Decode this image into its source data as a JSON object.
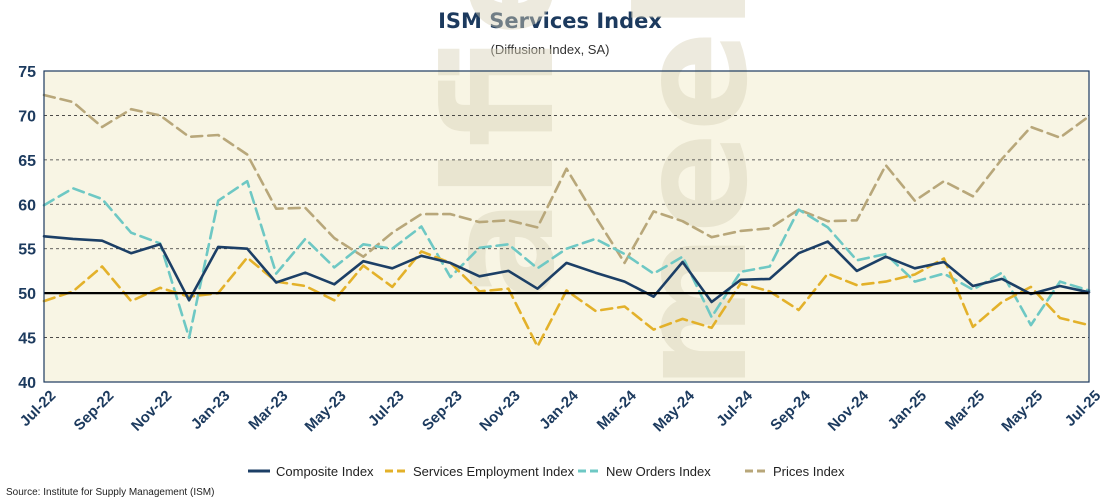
{
  "chart_data": {
    "type": "line",
    "title": "ISM Services Index",
    "subtitle": "(Diffusion Index, SA)",
    "source": "Source: Institute for Supply Management (ISM)",
    "watermark": [
      "alfie",
      "meek"
    ],
    "ylim": [
      40,
      75
    ],
    "yticks": [
      40,
      45,
      50,
      55,
      60,
      65,
      70,
      75
    ],
    "reference_line": 50,
    "grid": "horizontal dashed",
    "legend_position": "bottom",
    "background_color": "#f8f5e4",
    "categories": [
      "Jul-22",
      "Aug-22",
      "Sep-22",
      "Oct-22",
      "Nov-22",
      "Dec-22",
      "Jan-23",
      "Feb-23",
      "Mar-23",
      "Apr-23",
      "May-23",
      "Jun-23",
      "Jul-23",
      "Aug-23",
      "Sep-23",
      "Oct-23",
      "Nov-23",
      "Dec-23",
      "Jan-24",
      "Feb-24",
      "Mar-24",
      "Apr-24",
      "May-24",
      "Jun-24",
      "Jul-24",
      "Aug-24",
      "Sep-24",
      "Oct-24",
      "Nov-24",
      "Dec-24",
      "Jan-25",
      "Feb-25",
      "Mar-25",
      "Apr-25",
      "May-25",
      "Jun-25",
      "Jul-25"
    ],
    "tick_labels": [
      "Jul-22",
      "Sep-22",
      "Nov-22",
      "Jan-23",
      "Mar-23",
      "May-23",
      "Jul-23",
      "Sep-23",
      "Nov-23",
      "Jan-24",
      "Mar-24",
      "May-24",
      "Jul-24",
      "Sep-24",
      "Nov-24",
      "Jan-25",
      "Mar-25",
      "May-25",
      "Jul-25"
    ],
    "series": [
      {
        "name": "Composite Index",
        "color": "#1c3f66",
        "dash": "solid",
        "values": [
          56.4,
          56.1,
          55.9,
          54.5,
          55.5,
          49.2,
          55.2,
          55.0,
          51.2,
          52.3,
          51.0,
          53.6,
          52.8,
          54.2,
          53.4,
          51.9,
          52.5,
          50.5,
          53.4,
          52.3,
          51.3,
          49.6,
          53.5,
          49.0,
          51.5,
          51.6,
          54.5,
          55.8,
          52.5,
          54.1,
          52.8,
          53.5,
          50.8,
          51.6,
          49.9,
          50.8,
          50.1
        ]
      },
      {
        "name": "Services Employment Index",
        "color": "#e3b12a",
        "dash": "dashed",
        "values": [
          49.1,
          50.2,
          53.0,
          49.1,
          50.6,
          49.6,
          50.0,
          54.0,
          51.3,
          50.8,
          49.2,
          53.1,
          50.7,
          54.7,
          53.4,
          50.2,
          50.5,
          44.0,
          50.3,
          48.0,
          48.5,
          45.9,
          47.1,
          46.1,
          51.1,
          50.2,
          48.1,
          52.2,
          50.9,
          51.3,
          52.1,
          53.9,
          46.2,
          49.0,
          50.7,
          47.2,
          46.4
        ]
      },
      {
        "name": "New Orders Index",
        "color": "#6ec8c4",
        "dash": "dashed",
        "values": [
          59.9,
          61.8,
          60.6,
          56.8,
          55.6,
          45.0,
          60.4,
          62.6,
          52.2,
          56.1,
          52.9,
          55.5,
          55.0,
          57.5,
          51.8,
          55.1,
          55.5,
          52.8,
          55.0,
          56.1,
          54.4,
          52.2,
          54.1,
          47.3,
          52.4,
          53.0,
          59.4,
          57.4,
          53.7,
          54.4,
          51.3,
          52.2,
          50.4,
          52.3,
          46.4,
          51.3,
          50.3
        ]
      },
      {
        "name": "Prices Index",
        "color": "#b8a77a",
        "dash": "dashed",
        "values": [
          72.3,
          71.5,
          68.7,
          70.7,
          70.0,
          67.6,
          67.8,
          65.6,
          59.5,
          59.6,
          56.2,
          54.1,
          56.8,
          58.9,
          58.9,
          58.0,
          58.2,
          57.4,
          64.0,
          58.6,
          53.4,
          59.2,
          58.1,
          56.3,
          57.0,
          57.3,
          59.4,
          58.1,
          58.2,
          64.4,
          60.4,
          62.6,
          60.9,
          65.1,
          68.7,
          67.5,
          69.9
        ]
      }
    ]
  }
}
